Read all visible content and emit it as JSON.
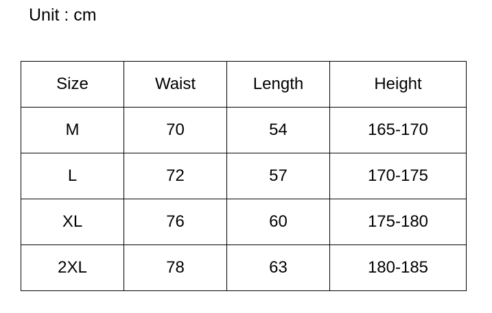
{
  "unit_label": "Unit : cm",
  "table": {
    "headers": [
      "Size",
      "Waist",
      "Length",
      "Height"
    ],
    "rows": [
      [
        "M",
        "70",
        "54",
        "165-170"
      ],
      [
        "L",
        "72",
        "57",
        "170-175"
      ],
      [
        "XL",
        "76",
        "60",
        "175-180"
      ],
      [
        "2XL",
        "78",
        "63",
        "180-185"
      ]
    ]
  }
}
